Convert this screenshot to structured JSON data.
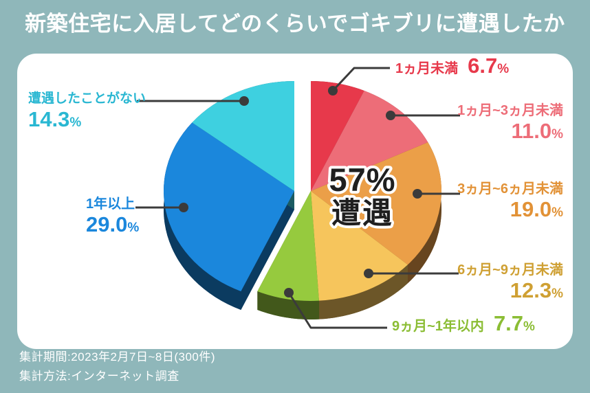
{
  "page": {
    "background_color": "#8fb7ba",
    "card_color": "#ffffff"
  },
  "title": "新築住宅に入居してどのくらいでゴキブリに遭遇したか",
  "footer": {
    "line1": "集計期間:2023年2月7日~8日(300件)",
    "line2": "集計方法:インターネット調査"
  },
  "chart_data": {
    "type": "pie",
    "title": "新築住宅に入居してどのくらいでゴキブリに遭遇したか",
    "style": "3d-exploded",
    "unit": "%",
    "start_angle_deg": -90,
    "direction": "clockwise",
    "center_label": {
      "line1": "57%",
      "line2": "遭遇"
    },
    "legend_position": "callout-labels",
    "slices": [
      {
        "label": "1ヵ月未満",
        "value": 6.7,
        "display_value": "6.7",
        "color": "#e7394b",
        "label_color": "#e7394b",
        "group": "encountered"
      },
      {
        "label": "1ヵ月~3ヵ月未満",
        "value": 11.0,
        "display_value": "11.0",
        "color": "#ed6d78",
        "label_color": "#ed6d78",
        "group": "encountered"
      },
      {
        "label": "3ヵ月~6ヵ月未満",
        "value": 19.0,
        "display_value": "19.0",
        "color": "#eb9f48",
        "label_color": "#e29237",
        "group": "encountered"
      },
      {
        "label": "6ヵ月~9ヵ月未満",
        "value": 12.3,
        "display_value": "12.3",
        "color": "#f6c55c",
        "label_color": "#cfa033",
        "group": "encountered"
      },
      {
        "label": "9ヵ月~1年以内",
        "value": 7.7,
        "display_value": "7.7",
        "color": "#96ca3e",
        "label_color": "#8bbd34",
        "group": "encountered"
      },
      {
        "label": "1年以上",
        "value": 29.0,
        "display_value": "29.0",
        "color": "#1b87dc",
        "label_color": "#1b87dc",
        "group": "later-or-never"
      },
      {
        "label": "遭遇したことがない",
        "value": 14.3,
        "display_value": "14.3",
        "color": "#3ed0e0",
        "label_color": "#29b7d2",
        "group": "later-or-never"
      }
    ]
  }
}
